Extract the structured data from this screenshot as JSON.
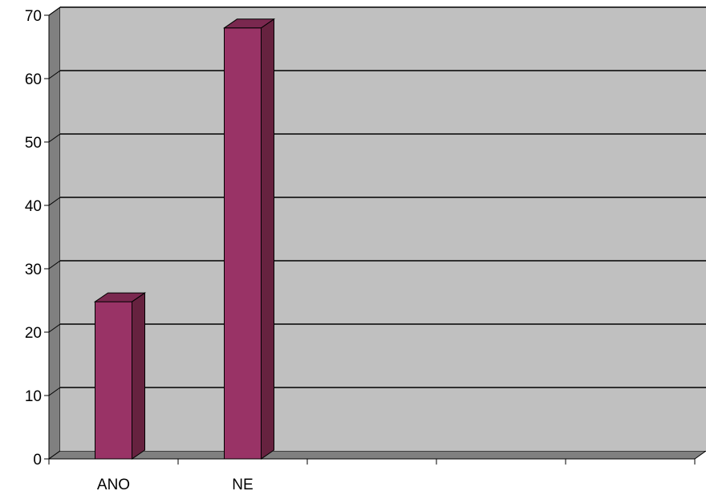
{
  "chart_data": {
    "type": "bar",
    "style": "3d-column",
    "categories": [
      "ANO",
      "NE",
      "",
      "",
      ""
    ],
    "values": [
      24.8,
      68,
      null,
      null,
      null
    ],
    "title": "",
    "xlabel": "",
    "ylabel": "",
    "ylim": [
      0,
      70
    ],
    "yticks": [
      "0",
      "10",
      "20",
      "30",
      "40",
      "50",
      "60",
      "70"
    ],
    "grid": true,
    "legend": "none",
    "colors": {
      "bar_front": "#993366",
      "bar_side": "#66223f",
      "bar_top": "#7a284f",
      "wall": "#c0c0c0",
      "side_wall": "#808080",
      "floor": "#808080",
      "gridline": "#000000"
    }
  }
}
